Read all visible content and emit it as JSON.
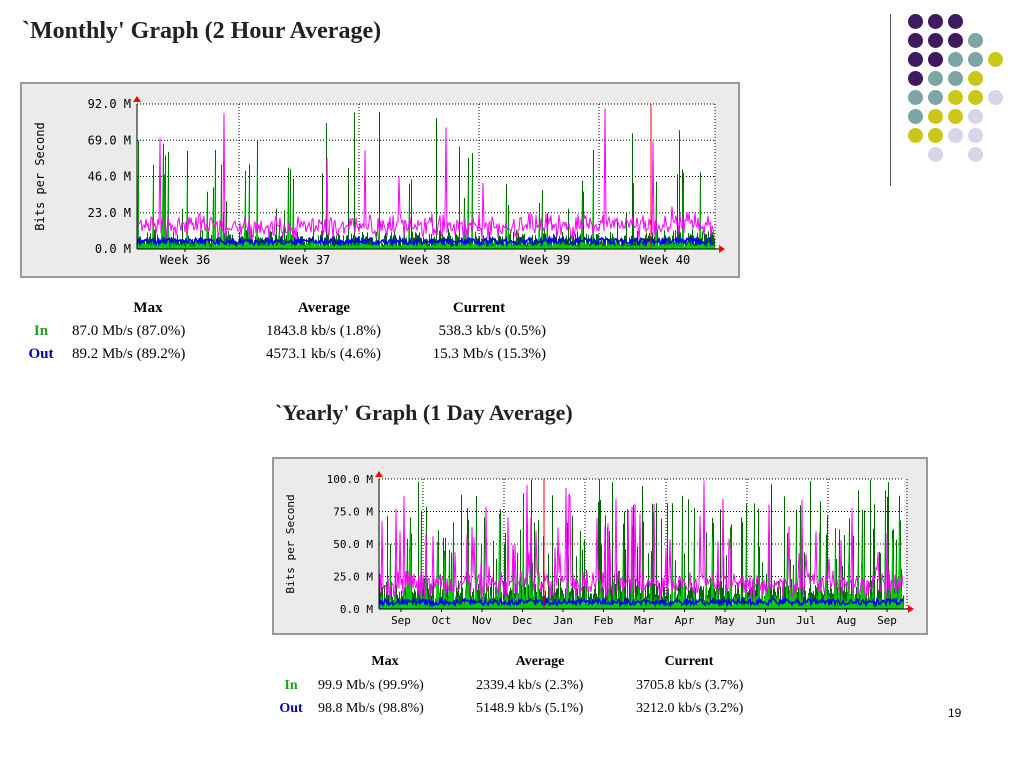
{
  "slide": {
    "page_number": "19"
  },
  "decor": {
    "colors": {
      "purple": "#3f1a5e",
      "teal": "#7ea5a5",
      "olive": "#c9c816",
      "lavender": "#d6d6e8"
    }
  },
  "monthly": {
    "title": "`Monthly' Graph (2 Hour Average)",
    "stats": {
      "headers": [
        "Max",
        "Average",
        "Current"
      ],
      "rows": [
        {
          "label": "In",
          "max": "87.0 Mb/s (87.0%)",
          "average": "1843.8 kb/s (1.8%)",
          "current": "538.3 kb/s (0.5%)"
        },
        {
          "label": "Out",
          "max": "89.2 Mb/s (89.2%)",
          "average": "4573.1 kb/s (4.6%)",
          "current": "15.3 Mb/s (15.3%)"
        }
      ]
    }
  },
  "yearly": {
    "title": "`Yearly' Graph (1 Day Average)",
    "stats": {
      "headers": [
        "Max",
        "Average",
        "Current"
      ],
      "rows": [
        {
          "label": "In",
          "max": "99.9 Mb/s (99.9%)",
          "average": "2339.4 kb/s (2.3%)",
          "current": "3705.8 kb/s (3.7%)"
        },
        {
          "label": "Out",
          "max": "98.8 Mb/s (98.8%)",
          "average": "5148.9 kb/s (5.1%)",
          "current": "3212.0 kb/s (3.2%)"
        }
      ]
    }
  },
  "chart_data": [
    {
      "type": "area",
      "title": "",
      "ylabel": "Bits per Second",
      "xlabel": "",
      "x_tick_labels": [
        "Week 36",
        "Week 37",
        "Week 38",
        "Week 39",
        "Week 40"
      ],
      "y_tick_labels": [
        "0.0 M",
        "23.0 M",
        "46.0 M",
        "69.0 M",
        "92.0 M"
      ],
      "ylim": [
        0,
        92
      ],
      "y_unit": "Mb/s",
      "grid": true,
      "colors": {
        "in": "#00cc00",
        "in_peak": "#006600",
        "out": "#0000ff",
        "out_peak": "#ff00ff"
      },
      "series": [
        {
          "name": "In",
          "max": 87.0,
          "average": 1.84,
          "current": 0.54
        },
        {
          "name": "Out",
          "max": 89.2,
          "average": 4.57,
          "current": 15.3
        }
      ]
    },
    {
      "type": "area",
      "title": "",
      "ylabel": "Bits per Second",
      "xlabel": "",
      "x_tick_labels": [
        "Sep",
        "Oct",
        "Nov",
        "Dec",
        "Jan",
        "Feb",
        "Mar",
        "Apr",
        "May",
        "Jun",
        "Jul",
        "Aug",
        "Sep"
      ],
      "y_tick_labels": [
        "0.0 M",
        "25.0 M",
        "50.0 M",
        "75.0 M",
        "100.0 M"
      ],
      "ylim": [
        0,
        100
      ],
      "y_unit": "Mb/s",
      "grid": true,
      "colors": {
        "in": "#00cc00",
        "in_peak": "#006600",
        "out": "#0000ff",
        "out_peak": "#ff00ff"
      },
      "series": [
        {
          "name": "In",
          "max": 99.9,
          "average": 2.34,
          "current": 3.71
        },
        {
          "name": "Out",
          "max": 98.8,
          "average": 5.15,
          "current": 3.21
        }
      ]
    }
  ]
}
